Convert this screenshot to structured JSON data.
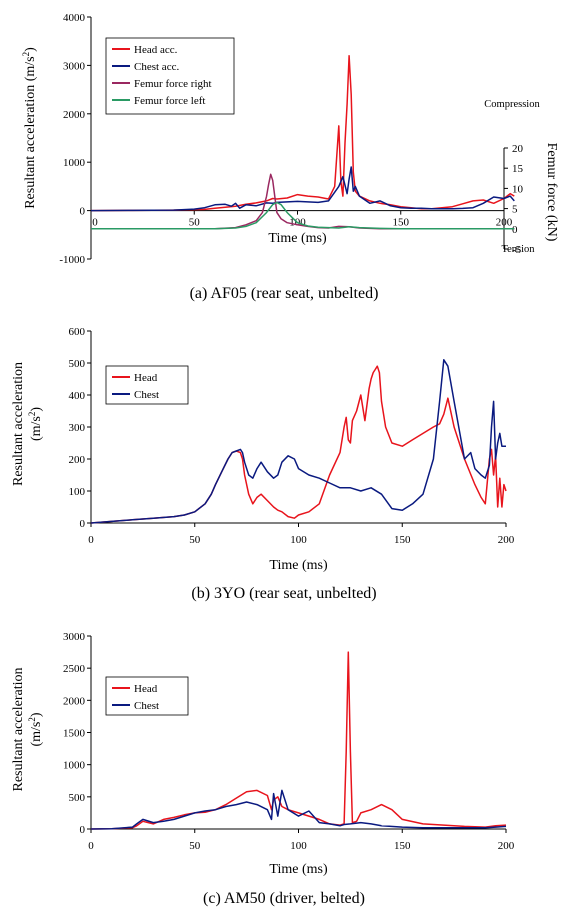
{
  "chart_data": [
    {
      "type": "line",
      "caption": "(a) AF05 (rear seat, unbelted)",
      "xlabel": "Time (ms)",
      "ylabel_main": "Resultant acceleration (m/s",
      "ylabel_sup": "2",
      "ylabel_close": ")",
      "y2label": "Femur force (kN)",
      "y2_top_label": "Compression",
      "y2_bottom_label": "Tension",
      "xlim": [
        0,
        200
      ],
      "ylim": [
        -1000,
        4000
      ],
      "y2lim": [
        -5,
        20
      ],
      "xticks": [
        0,
        50,
        100,
        150,
        200
      ],
      "yticks": [
        -1000,
        0,
        1000,
        2000,
        3000,
        4000
      ],
      "y2ticks": [
        -5,
        0,
        5,
        10,
        15,
        20
      ],
      "legend": "top-left",
      "series": [
        {
          "name": "Head acc.",
          "color": "#e8141c",
          "axis": "left",
          "x": [
            0,
            20,
            40,
            55,
            60,
            65,
            70,
            75,
            80,
            85,
            88,
            90,
            95,
            100,
            105,
            110,
            115,
            118,
            120,
            121,
            122,
            123,
            124,
            125,
            126,
            127,
            128,
            130,
            135,
            140,
            145,
            150,
            155,
            160,
            165,
            170,
            175,
            180,
            185,
            190,
            195,
            200,
            203,
            205
          ],
          "y": [
            0,
            5,
            10,
            25,
            50,
            70,
            90,
            130,
            160,
            200,
            250,
            240,
            260,
            330,
            300,
            280,
            240,
            500,
            1750,
            600,
            300,
            1400,
            2200,
            3200,
            2400,
            800,
            400,
            300,
            200,
            150,
            120,
            80,
            60,
            40,
            40,
            60,
            80,
            140,
            200,
            220,
            150,
            250,
            350,
            300
          ]
        },
        {
          "name": "Chest acc.",
          "color": "#0a1a80",
          "axis": "left",
          "x": [
            0,
            20,
            40,
            50,
            55,
            60,
            65,
            68,
            70,
            72,
            75,
            80,
            85,
            88,
            90,
            95,
            100,
            105,
            110,
            115,
            120,
            122,
            124,
            125,
            126,
            127,
            128,
            130,
            135,
            140,
            145,
            150,
            155,
            160,
            165,
            170,
            175,
            180,
            185,
            190,
            195,
            200,
            203,
            205
          ],
          "y": [
            0,
            5,
            10,
            30,
            60,
            120,
            130,
            90,
            150,
            50,
            120,
            100,
            160,
            150,
            170,
            180,
            190,
            180,
            170,
            200,
            500,
            700,
            350,
            650,
            900,
            400,
            500,
            300,
            150,
            200,
            100,
            60,
            50,
            50,
            40,
            40,
            40,
            45,
            60,
            150,
            280,
            250,
            300,
            200
          ]
        },
        {
          "name": "Femur force right",
          "color": "#9a2860",
          "axis": "right",
          "x": [
            0,
            40,
            60,
            70,
            75,
            80,
            83,
            85,
            86,
            87,
            88,
            89,
            90,
            92,
            95,
            100,
            105,
            110,
            115,
            120,
            125,
            130,
            140,
            150,
            160,
            170,
            180,
            190,
            200,
            205
          ],
          "y": [
            0,
            0,
            0,
            0.3,
            1,
            2,
            4,
            8,
            11,
            13.5,
            12,
            8,
            4,
            2.5,
            1.5,
            1,
            0.6,
            0.3,
            0.2,
            0.6,
            0.5,
            0.2,
            0,
            0,
            0,
            0,
            0,
            0,
            0,
            0
          ]
        },
        {
          "name": "Femur force left",
          "color": "#2a9a64",
          "axis": "right",
          "x": [
            0,
            40,
            60,
            70,
            75,
            80,
            85,
            88,
            90,
            92,
            95,
            97,
            100,
            105,
            110,
            115,
            120,
            125,
            130,
            140,
            150,
            160,
            170,
            180,
            190,
            200,
            205
          ],
          "y": [
            0,
            0,
            0,
            0.2,
            0.6,
            1.5,
            4,
            6,
            6.5,
            6,
            4,
            3,
            1.5,
            0.7,
            0.4,
            0.3,
            0.2,
            0.5,
            0.3,
            0.1,
            0,
            0,
            0,
            0,
            0,
            0,
            0
          ]
        }
      ]
    },
    {
      "type": "line",
      "caption": "(b) 3YO (rear seat, unbelted)",
      "xlabel": "Time (ms)",
      "ylabel_line1": "Resultant acceleration",
      "ylabel_line2_main": "(m/s",
      "ylabel_line2_sup": "2",
      "ylabel_line2_close": ")",
      "xlim": [
        0,
        200
      ],
      "ylim": [
        0,
        600
      ],
      "xticks": [
        0,
        50,
        100,
        150,
        200
      ],
      "yticks": [
        0,
        100,
        200,
        300,
        400,
        500,
        600
      ],
      "legend": "top-left",
      "series": [
        {
          "name": "Head",
          "color": "#e8141c",
          "x": [
            0,
            10,
            20,
            30,
            40,
            45,
            50,
            55,
            58,
            60,
            63,
            66,
            68,
            70,
            72,
            73,
            74,
            76,
            78,
            80,
            82,
            85,
            88,
            90,
            92,
            95,
            98,
            100,
            105,
            110,
            115,
            120,
            122,
            123,
            124,
            125,
            126,
            128,
            130,
            132,
            134,
            135,
            136,
            137,
            138,
            139,
            140,
            142,
            145,
            150,
            155,
            160,
            165,
            168,
            170,
            172,
            175,
            180,
            185,
            188,
            190,
            192,
            193,
            194,
            195,
            196,
            197,
            198,
            199,
            200
          ],
          "y": [
            0,
            5,
            10,
            15,
            20,
            25,
            35,
            60,
            90,
            120,
            160,
            200,
            220,
            225,
            220,
            200,
            150,
            90,
            60,
            80,
            90,
            70,
            50,
            40,
            35,
            20,
            15,
            25,
            35,
            60,
            150,
            220,
            300,
            330,
            260,
            250,
            320,
            350,
            400,
            320,
            420,
            450,
            470,
            480,
            490,
            470,
            380,
            300,
            250,
            240,
            260,
            280,
            300,
            310,
            340,
            390,
            300,
            200,
            120,
            80,
            60,
            200,
            230,
            150,
            210,
            50,
            140,
            50,
            120,
            100
          ]
        },
        {
          "name": "Chest",
          "color": "#0a1a80",
          "x": [
            0,
            10,
            20,
            30,
            40,
            45,
            50,
            55,
            58,
            60,
            63,
            66,
            68,
            70,
            72,
            73,
            74,
            76,
            78,
            80,
            82,
            85,
            88,
            90,
            92,
            95,
            98,
            100,
            105,
            110,
            115,
            120,
            125,
            130,
            135,
            140,
            145,
            150,
            155,
            160,
            165,
            168,
            170,
            172,
            175,
            180,
            183,
            185,
            188,
            190,
            192,
            193,
            194,
            195,
            196,
            197,
            198,
            200
          ],
          "y": [
            0,
            5,
            10,
            15,
            20,
            25,
            35,
            60,
            90,
            120,
            160,
            200,
            220,
            225,
            230,
            220,
            190,
            150,
            140,
            170,
            190,
            160,
            140,
            150,
            190,
            210,
            200,
            170,
            150,
            140,
            125,
            110,
            110,
            100,
            110,
            90,
            45,
            40,
            60,
            90,
            200,
            380,
            510,
            490,
            380,
            200,
            220,
            170,
            150,
            140,
            180,
            300,
            380,
            200,
            250,
            280,
            240,
            240
          ]
        }
      ]
    },
    {
      "type": "line",
      "caption": "(c) AM50 (driver, belted)",
      "xlabel": "Time (ms)",
      "ylabel_line1": "Resultant acceleration",
      "ylabel_line2_main": "(m/s",
      "ylabel_line2_sup": "2",
      "ylabel_line2_close": ")",
      "xlim": [
        0,
        200
      ],
      "ylim": [
        0,
        3000
      ],
      "xticks": [
        0,
        50,
        100,
        150,
        200
      ],
      "yticks": [
        0,
        500,
        1000,
        1500,
        2000,
        2500,
        3000
      ],
      "legend": "top-left",
      "series": [
        {
          "name": "Head",
          "color": "#e8141c",
          "x": [
            0,
            10,
            20,
            22,
            25,
            30,
            35,
            40,
            45,
            50,
            55,
            60,
            65,
            70,
            75,
            80,
            85,
            87,
            88,
            90,
            92,
            95,
            100,
            105,
            110,
            115,
            120,
            122,
            123,
            124,
            125,
            126,
            128,
            130,
            135,
            140,
            145,
            150,
            160,
            170,
            180,
            190,
            195,
            200
          ],
          "y": [
            0,
            5,
            20,
            50,
            120,
            80,
            150,
            180,
            220,
            250,
            260,
            300,
            380,
            480,
            580,
            600,
            520,
            300,
            450,
            500,
            350,
            300,
            250,
            200,
            150,
            80,
            60,
            80,
            1200,
            2750,
            1200,
            100,
            120,
            250,
            300,
            380,
            300,
            150,
            80,
            60,
            40,
            30,
            50,
            60
          ]
        },
        {
          "name": "Chest",
          "color": "#0a1a80",
          "x": [
            0,
            10,
            20,
            22,
            25,
            30,
            35,
            40,
            45,
            50,
            55,
            60,
            65,
            70,
            75,
            80,
            85,
            87,
            88,
            90,
            92,
            95,
            100,
            105,
            110,
            115,
            120,
            122,
            125,
            130,
            135,
            140,
            150,
            160,
            170,
            180,
            190,
            195,
            200
          ],
          "y": [
            0,
            5,
            30,
            80,
            150,
            100,
            120,
            150,
            200,
            250,
            280,
            300,
            350,
            380,
            420,
            380,
            300,
            150,
            550,
            200,
            600,
            300,
            200,
            280,
            100,
            80,
            50,
            70,
            80,
            100,
            80,
            50,
            30,
            20,
            20,
            20,
            20,
            30,
            40
          ]
        }
      ]
    }
  ]
}
